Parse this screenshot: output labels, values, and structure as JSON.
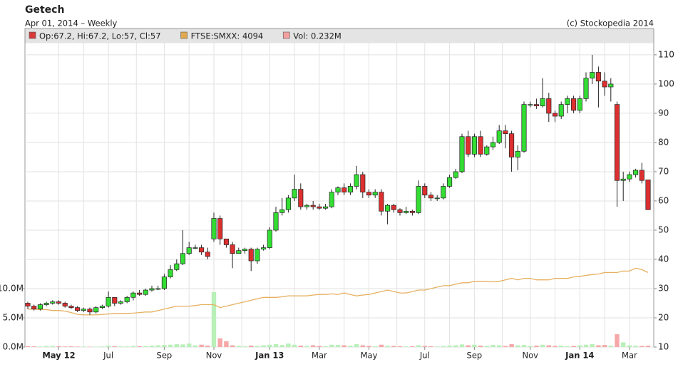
{
  "chart_data": {
    "type": "candlestick",
    "title": "Getech",
    "subtitle": "Apr 01, 2014 – Weekly",
    "source": "(c) Stockopedia 2014",
    "legend": [
      {
        "label": "Op:67.2, Hi:67.2, Lo:57, Cl:57",
        "color": "#d63a3a"
      },
      {
        "label": "FTSE:SMXX: 4094",
        "color": "#e0a850"
      },
      {
        "label": "Vol: 0.232M",
        "color": "#f4a0a0"
      }
    ],
    "up_color": "#33dd33",
    "down_color": "#dd2f2f",
    "vol_up_color": "#b8f0b8",
    "vol_down_color": "#f6a8a8",
    "categories": [
      null,
      null,
      null,
      null,
      null,
      "May 12",
      null,
      null,
      null,
      null,
      null,
      null,
      null,
      "Jul",
      null,
      null,
      null,
      null,
      null,
      null,
      null,
      null,
      "Sep",
      null,
      null,
      null,
      null,
      null,
      null,
      null,
      "Nov",
      null,
      null,
      null,
      null,
      null,
      null,
      null,
      null,
      "Jan 13",
      null,
      null,
      null,
      null,
      null,
      null,
      null,
      "Mar",
      null,
      null,
      null,
      null,
      null,
      null,
      null,
      "May",
      null,
      null,
      null,
      null,
      null,
      null,
      null,
      null,
      "Jul",
      null,
      null,
      null,
      null,
      null,
      null,
      null,
      "Sep",
      null,
      null,
      null,
      null,
      null,
      null,
      null,
      null,
      "Nov",
      null,
      null,
      null,
      null,
      null,
      null,
      null,
      "Jan 14",
      null,
      null,
      null,
      null,
      null,
      null,
      null,
      "Mar",
      null,
      null,
      null
    ],
    "open": [
      25,
      24,
      23,
      24.5,
      25,
      25.5,
      25,
      24,
      23.5,
      22.5,
      23,
      22,
      23.5,
      24,
      27,
      25,
      25.5,
      27,
      28.5,
      28,
      29.5,
      30,
      30,
      34,
      36.5,
      38.5,
      42,
      44,
      44,
      42.5,
      47,
      54,
      47,
      45,
      42,
      43,
      43.5,
      39.5,
      43.5,
      44,
      50,
      56,
      57,
      61,
      64,
      58,
      58.5,
      58,
      57.5,
      58,
      63,
      64.5,
      63,
      65,
      69,
      63,
      62,
      63,
      56.5,
      58.5,
      57,
      56,
      56.5,
      56,
      65,
      62,
      61,
      61,
      65,
      68,
      70,
      82,
      76,
      82,
      76,
      78.5,
      80,
      84,
      83,
      75,
      77,
      93,
      93,
      92.5,
      95,
      90,
      89,
      93,
      95,
      91,
      95,
      102,
      104,
      101,
      99,
      93,
      67,
      67.5,
      69,
      70.5,
      67.2
    ],
    "high": [
      25.5,
      24.5,
      25,
      25.5,
      26,
      26,
      25.5,
      24.5,
      24,
      23.5,
      23.5,
      24,
      24.5,
      29,
      27,
      26,
      27.5,
      29,
      29.5,
      30,
      31,
      31,
      35,
      38,
      40,
      50,
      46,
      45,
      45,
      44,
      56,
      55,
      47,
      46,
      44,
      44,
      44,
      44,
      45,
      51,
      58,
      61,
      62,
      69,
      66,
      59,
      60,
      59,
      59,
      64,
      65,
      66,
      66,
      72,
      70,
      64,
      64,
      64,
      59,
      59,
      57.5,
      58,
      57,
      67,
      66,
      63,
      62,
      66,
      69,
      71,
      83,
      84,
      83,
      84,
      79,
      82,
      86,
      86,
      84,
      79,
      94,
      94,
      95,
      102,
      97,
      91,
      94,
      96,
      96,
      96,
      104,
      110,
      106,
      104,
      102,
      94,
      70,
      70,
      71,
      73,
      67.2
    ],
    "low": [
      23,
      22.5,
      22.5,
      24,
      24.5,
      24.5,
      23.5,
      23,
      22,
      22,
      21,
      21.5,
      23,
      23.5,
      24,
      24.5,
      25,
      26,
      27.5,
      27.5,
      29,
      29.5,
      29.5,
      33.5,
      36,
      38,
      41.5,
      43.5,
      41.5,
      40,
      46,
      45,
      44,
      37,
      42,
      42,
      36,
      38.5,
      43,
      43.5,
      49.5,
      55,
      56,
      60,
      57,
      57,
      57,
      57,
      57,
      57.5,
      62,
      62,
      62,
      64,
      61,
      61,
      61,
      55,
      52,
      56,
      55,
      55.5,
      55,
      55.5,
      61,
      60,
      60,
      60.5,
      64.5,
      67.5,
      69.5,
      75,
      75,
      75,
      75.5,
      77.5,
      79.5,
      78,
      70,
      70.5,
      76.5,
      92,
      91.5,
      92,
      87,
      87,
      88,
      90,
      90,
      90,
      94,
      100,
      92,
      96,
      94,
      58,
      60,
      66.5,
      68,
      66,
      57
    ],
    "close": [
      24,
      23,
      24.5,
      25,
      25.5,
      25,
      24,
      23.5,
      22.5,
      23,
      22,
      23.5,
      24,
      27,
      25,
      25.5,
      27,
      28.5,
      28,
      29.5,
      30,
      30,
      34,
      36.5,
      38.5,
      42,
      44,
      44,
      42.5,
      41,
      54,
      47,
      45,
      42,
      43,
      43.5,
      39.5,
      43.5,
      44,
      50,
      56,
      57,
      61,
      64,
      58,
      58.5,
      58,
      57.5,
      58,
      63,
      64.5,
      63,
      65,
      69,
      63,
      62,
      63,
      56.5,
      58.5,
      57,
      56,
      56.5,
      56,
      65,
      62,
      61,
      61,
      65,
      68,
      70,
      82,
      76,
      82,
      76,
      78.5,
      80,
      84,
      83,
      75,
      77,
      93,
      93,
      92.5,
      95,
      90,
      89,
      93,
      95,
      91,
      95,
      102,
      104,
      101,
      99,
      100,
      67,
      67.5,
      69,
      70.5,
      67,
      57
    ],
    "volume": [
      150000,
      120000,
      100000,
      180000,
      200000,
      150000,
      100000,
      120000,
      80000,
      90000,
      60000,
      80000,
      100000,
      250000,
      150000,
      120000,
      100000,
      200000,
      150000,
      180000,
      250000,
      300000,
      350000,
      400000,
      500000,
      450000,
      600000,
      300000,
      400000,
      250000,
      9400000,
      1500000,
      1000000,
      300000,
      200000,
      150000,
      250000,
      200000,
      300000,
      400000,
      500000,
      350000,
      600000,
      400000,
      250000,
      200000,
      300000,
      200000,
      150000,
      400000,
      350000,
      300000,
      250000,
      500000,
      300000,
      200000,
      150000,
      400000,
      250000,
      200000,
      150000,
      100000,
      150000,
      300000,
      200000,
      150000,
      100000,
      200000,
      250000,
      300000,
      450000,
      300000,
      400000,
      250000,
      200000,
      350000,
      300000,
      200000,
      500000,
      300000,
      350000,
      200000,
      250000,
      400000,
      300000,
      200000,
      250000,
      150000,
      200000,
      300000,
      400000,
      500000,
      300000,
      350000,
      250000,
      2200000,
      800000,
      300000,
      250000,
      200000,
      232000
    ],
    "ftse": {
      "color": "#e6b060",
      "values": [
        23,
        23,
        22.8,
        22.8,
        22.5,
        22.5,
        22.3,
        21.8,
        21.2,
        21,
        21,
        21,
        21.2,
        21.3,
        21.5,
        21.5,
        21.5,
        21.6,
        21.8,
        22,
        22,
        22.5,
        23,
        23.5,
        24,
        24,
        24,
        24.2,
        24.5,
        24.5,
        24.5,
        23.5,
        24,
        24.5,
        25,
        25.5,
        26,
        26.5,
        27,
        27,
        27,
        27.2,
        27.5,
        27.5,
        27.5,
        27.5,
        27.8,
        28,
        28,
        28.2,
        28,
        28.5,
        28,
        27.5,
        27.8,
        28,
        28.5,
        29,
        29.5,
        29,
        28.5,
        28.5,
        29,
        29.5,
        29.5,
        30,
        30.5,
        31,
        31,
        31.5,
        32,
        32,
        32.5,
        32.5,
        32.5,
        32.3,
        32.5,
        33,
        33.5,
        33,
        33.5,
        33.5,
        33,
        33,
        33,
        33.5,
        33.5,
        33.5,
        34,
        34.2,
        34.5,
        34.8,
        35,
        35.5,
        35.5,
        35.5,
        36,
        36,
        37,
        36.5,
        35.5
      ]
    },
    "ylim": [
      10,
      119
    ],
    "yticks": [
      10,
      20,
      30,
      40,
      50,
      60,
      70,
      80,
      90,
      100,
      110
    ],
    "y2lim": [
      0,
      54500000
    ],
    "y2ticks": [
      {
        "value": 0,
        "label": "0.0M"
      },
      {
        "value": 5000000,
        "label": "5.0M"
      },
      {
        "value": 10000000,
        "label": "10.0M"
      }
    ],
    "grid": true
  }
}
